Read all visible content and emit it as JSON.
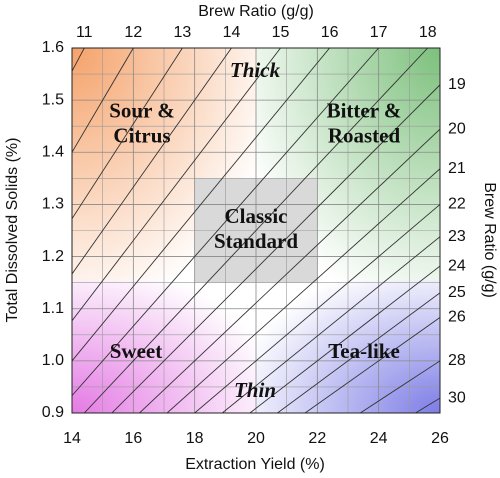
{
  "chart_data": {
    "type": "brew-control",
    "xlabel": "Extraction Yield (%)",
    "ylabel": "Total Dissolved Solids (%)",
    "top_label": "Brew Ratio (g/g)",
    "right_label": "Brew Ratio (g/g)",
    "xlim": [
      14,
      26
    ],
    "ylim": [
      0.9,
      1.6
    ],
    "xticks": [
      14,
      16,
      18,
      20,
      22,
      24,
      26
    ],
    "yticks": [
      {
        "value": 0.9,
        "label": "0.9"
      },
      {
        "value": 1.0,
        "label": "1.0"
      },
      {
        "value": 1.1,
        "label": "1.1"
      },
      {
        "value": 1.2,
        "label": "1.2"
      },
      {
        "value": 1.3,
        "label": "1.3"
      },
      {
        "value": 1.4,
        "label": "1.4"
      },
      {
        "value": 1.5,
        "label": "1.5"
      },
      {
        "value": 1.6,
        "label": "1.6"
      }
    ],
    "x_minor_ticks": [
      15,
      17,
      19,
      21,
      23,
      25
    ],
    "y_minor_ticks": [
      0.95,
      1.05,
      1.15,
      1.25,
      1.35,
      1.45,
      1.55
    ],
    "top_ratios": [
      11,
      12,
      13,
      14,
      15,
      16,
      17,
      18
    ],
    "right_ratios": [
      19,
      20,
      21,
      22,
      23,
      24,
      25,
      26,
      28,
      30
    ],
    "regions": [
      {
        "lines": [
          "Sour &",
          "Citrus"
        ],
        "color": "#f5a26a"
      },
      {
        "lines": [
          "Bitter &",
          "Roasted"
        ],
        "color": "#7cc07c"
      },
      {
        "lines": [
          "Sweet"
        ],
        "color": "#e47ae4"
      },
      {
        "lines": [
          "Tea-like"
        ],
        "color": "#7d7de6"
      }
    ],
    "annotations": [
      "Thick",
      "Thin"
    ],
    "standard": {
      "lines": [
        "Classic",
        "Standard"
      ],
      "xlim": [
        18,
        22
      ],
      "ylim": [
        1.15,
        1.35
      ],
      "color": "#d9d9d9"
    }
  }
}
